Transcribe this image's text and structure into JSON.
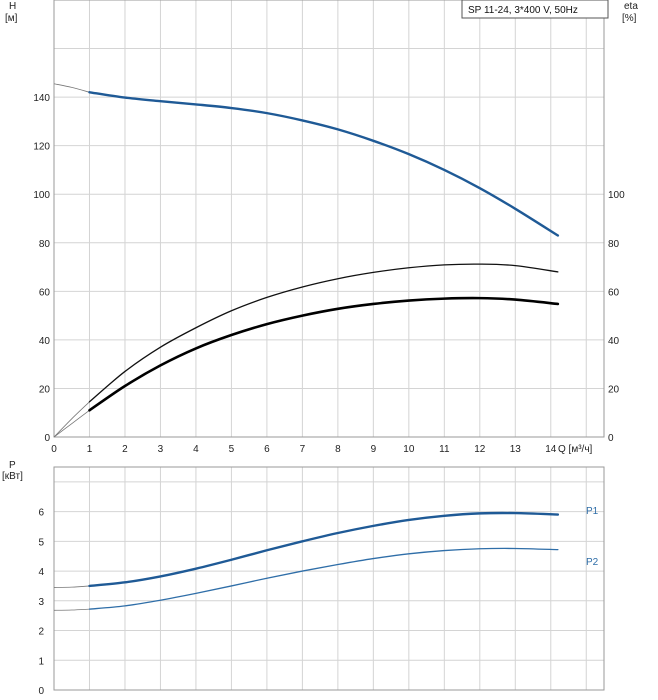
{
  "chart_data": [
    {
      "type": "line",
      "name": "head-efficiency",
      "title": "SP 11-24, 3*400 V, 50Hz",
      "xlabel": "Q [м³/ч]",
      "ylabel_unit_left": "H",
      "ylabel_unit_left2": "[м]",
      "ylabel_unit_right": "eta",
      "ylabel_unit_right2": "[%]",
      "xlim": [
        0,
        15.5
      ],
      "ylim": [
        0,
        180
      ],
      "x_ticks": [
        0,
        1,
        2,
        3,
        4,
        5,
        6,
        7,
        8,
        9,
        10,
        11,
        12,
        13,
        14
      ],
      "y_ticks_left": [
        0,
        20,
        40,
        60,
        80,
        100,
        120,
        140
      ],
      "y_ticks_right": [
        0,
        20,
        40,
        60,
        80,
        100
      ],
      "grid": true,
      "series": [
        {
          "id": "H",
          "color": "#1f5a96",
          "x": [
            1,
            2,
            3,
            4,
            5,
            6,
            7,
            8,
            9,
            10,
            11,
            12,
            13,
            14.2
          ],
          "y": [
            142,
            139.8,
            138.3,
            137,
            135.5,
            133.4,
            130.4,
            126.7,
            122,
            116.5,
            110,
            102.5,
            94,
            83
          ],
          "x_ext": [
            0,
            0.5,
            1
          ],
          "y_ext": [
            145.5,
            144,
            142
          ]
        },
        {
          "id": "eta_thin",
          "color": "#111111",
          "x": [
            1,
            2,
            3,
            4,
            5,
            6,
            7,
            8,
            9,
            10,
            11,
            12,
            13,
            14.2
          ],
          "y": [
            14.5,
            27,
            37,
            45,
            52,
            57.5,
            61.8,
            65.2,
            67.8,
            69.7,
            70.9,
            71.2,
            70.6,
            68
          ],
          "x_ext": [
            0,
            0.5,
            1
          ],
          "y_ext": [
            0,
            7.5,
            14.5
          ]
        },
        {
          "id": "eta_thick",
          "color": "#000000",
          "x": [
            1,
            2,
            3,
            4,
            5,
            6,
            7,
            8,
            9,
            10,
            11,
            12,
            13,
            14.2
          ],
          "y": [
            11,
            21,
            29.5,
            36.5,
            42,
            46.5,
            50,
            52.8,
            54.8,
            56.2,
            57,
            57.2,
            56.6,
            54.8
          ],
          "x_ext": [
            0,
            0.5,
            1
          ],
          "y_ext": [
            0,
            5.5,
            11
          ]
        }
      ]
    },
    {
      "type": "line",
      "name": "power",
      "ylabel_unit_left": "P",
      "ylabel_unit_left2": "[кВт]",
      "xlim": [
        0,
        15.5
      ],
      "ylim": [
        0,
        7.5
      ],
      "y_ticks_left": [
        0,
        1,
        2,
        3,
        4,
        5,
        6
      ],
      "grid": true,
      "series": [
        {
          "id": "P1",
          "name": "P1",
          "color": "#1f5a96",
          "x": [
            1,
            2,
            3,
            4,
            5,
            6,
            7,
            8,
            9,
            10,
            11,
            12,
            13,
            14.2
          ],
          "y": [
            3.5,
            3.62,
            3.82,
            4.08,
            4.38,
            4.7,
            5.0,
            5.28,
            5.52,
            5.72,
            5.86,
            5.94,
            5.95,
            5.9
          ],
          "x_ext": [
            0,
            0.5,
            1
          ],
          "y_ext": [
            3.45,
            3.46,
            3.5
          ]
        },
        {
          "id": "P2",
          "name": "P2",
          "color": "#2f6ea8",
          "x": [
            1,
            2,
            3,
            4,
            5,
            6,
            7,
            8,
            9,
            10,
            11,
            12,
            13,
            14.2
          ],
          "y": [
            2.72,
            2.83,
            3.02,
            3.25,
            3.5,
            3.76,
            4.0,
            4.22,
            4.42,
            4.58,
            4.69,
            4.75,
            4.76,
            4.72
          ],
          "x_ext": [
            0,
            0.5,
            1
          ],
          "y_ext": [
            2.68,
            2.69,
            2.72
          ]
        }
      ]
    }
  ]
}
